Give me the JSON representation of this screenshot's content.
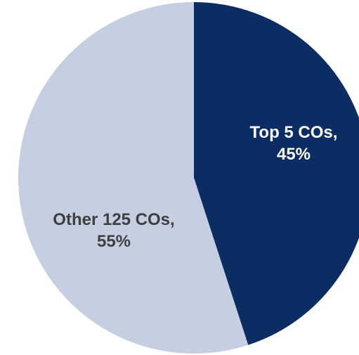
{
  "chart_data": {
    "type": "pie",
    "slices": [
      {
        "label": "Top 5 COs",
        "value": 45,
        "value_label": "45%",
        "color": "#0b2d63",
        "text_color": "#ffffff"
      },
      {
        "label": "Other 125 COs",
        "value": 55,
        "value_label": "55%",
        "color": "#c5cfe1",
        "text_color": "#3f3f3f"
      }
    ],
    "start": "12 o'clock",
    "direction": "clockwise",
    "legend": "none"
  }
}
